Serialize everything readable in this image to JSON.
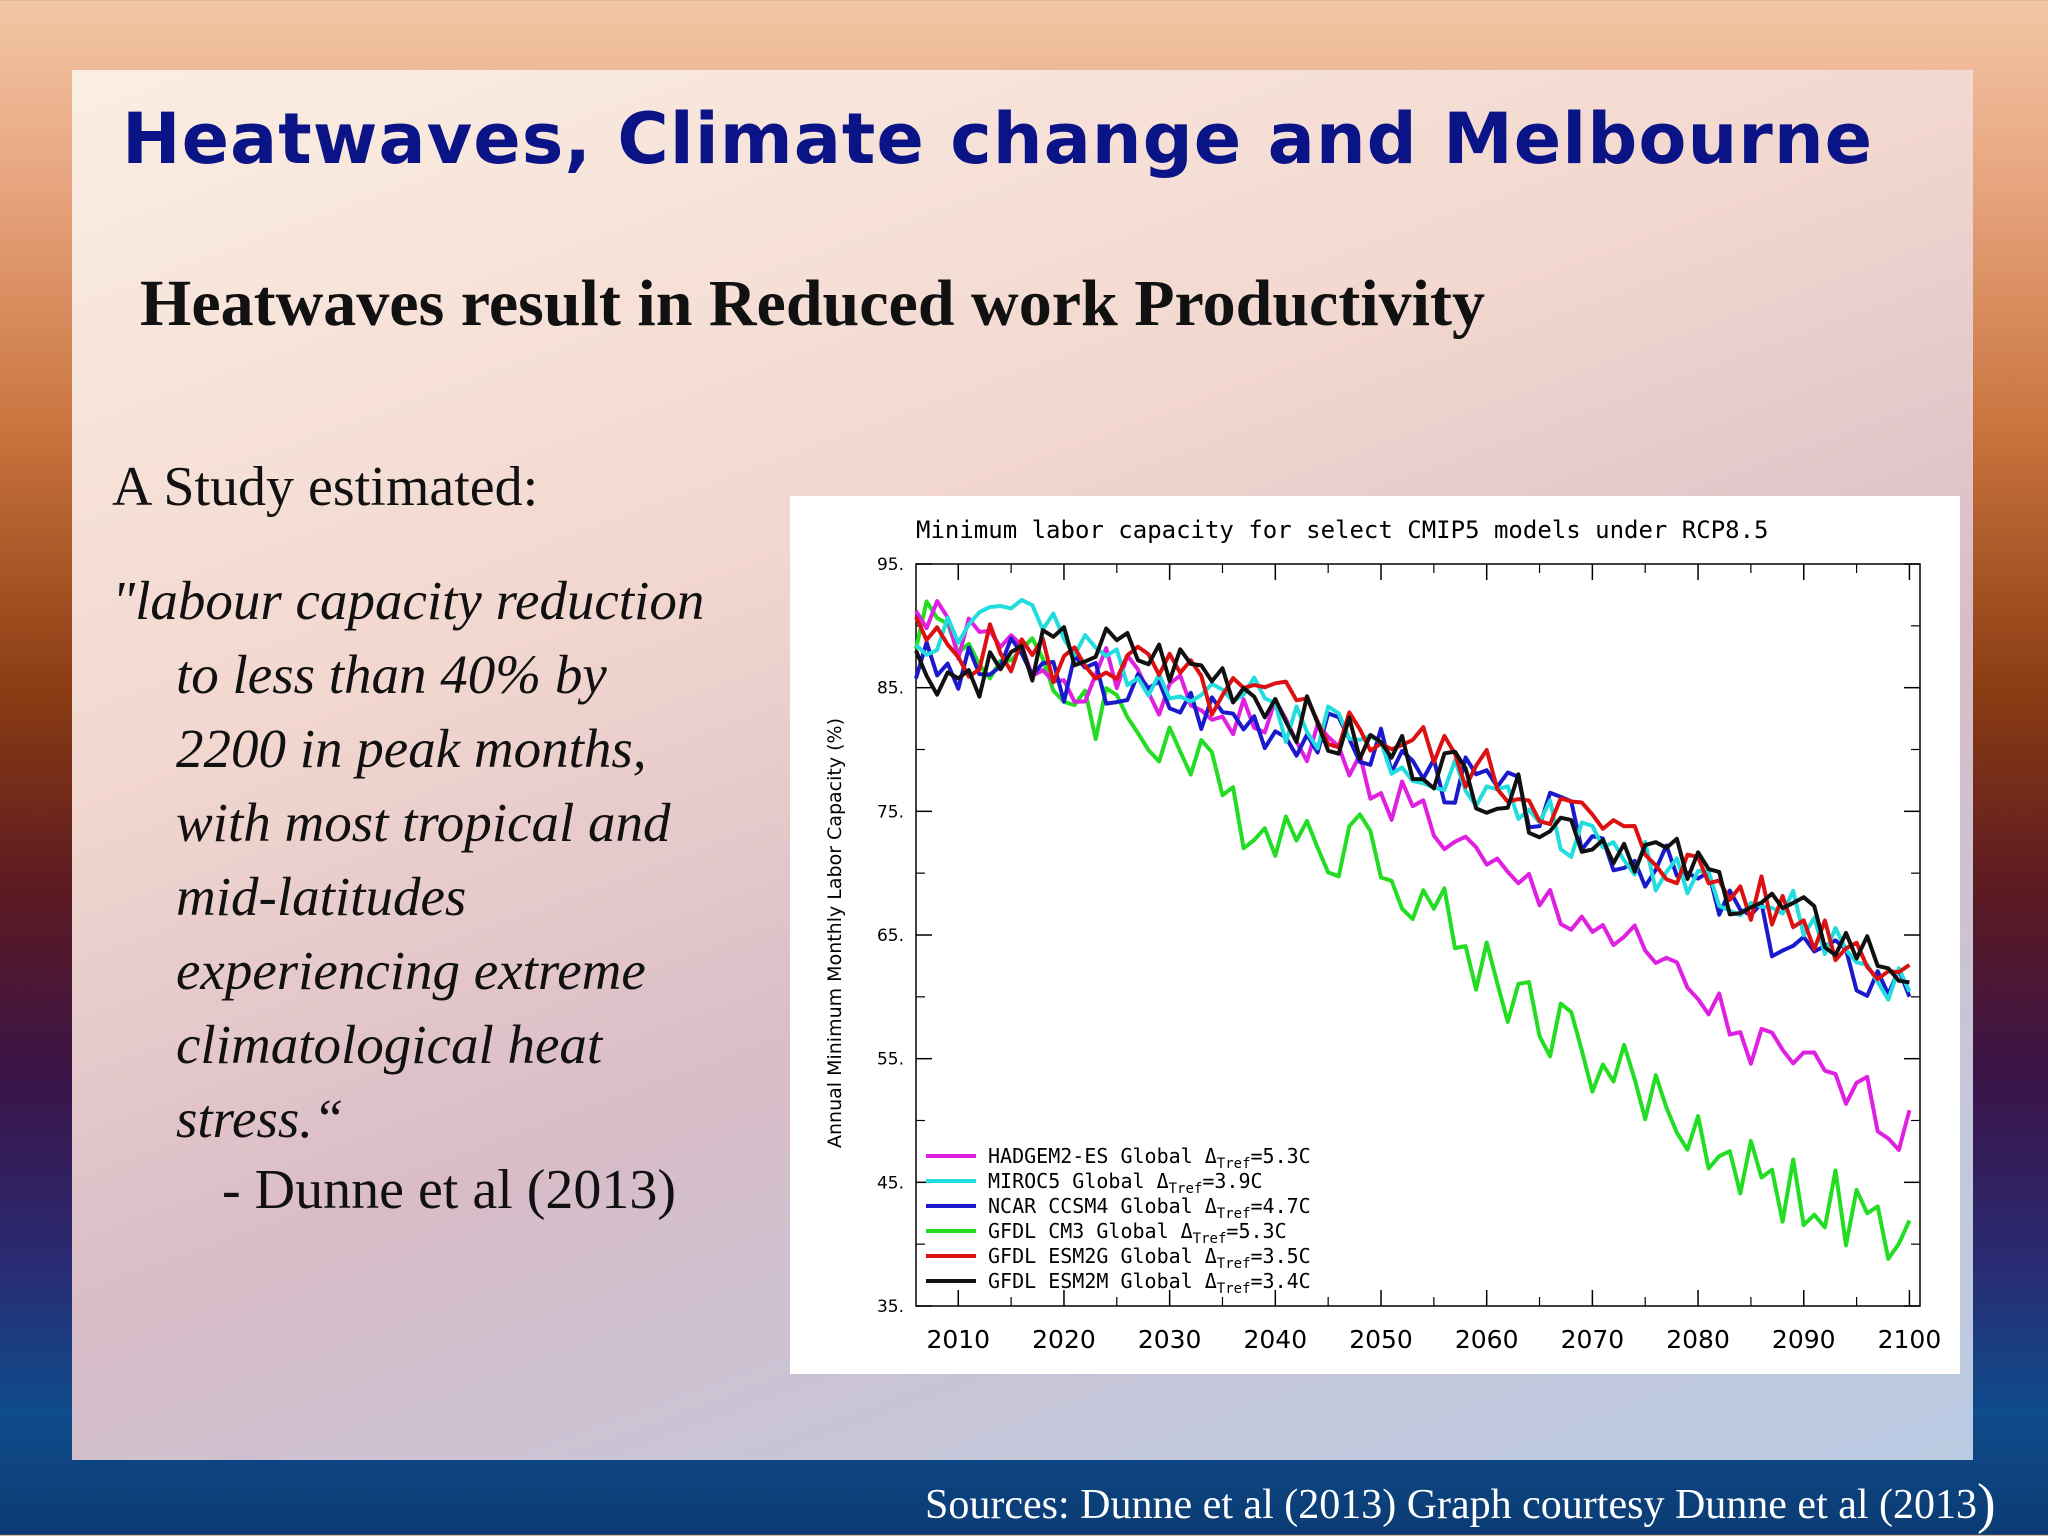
{
  "slide": {
    "title": "Heatwaves, Climate change and Melbourne",
    "subtitle": "Heatwaves result in Reduced work Productivity",
    "study_intro": "A Study estimated:",
    "quote_lines": [
      "\"labour capacity reduction",
      "to less than 40% by",
      "2200 in peak months,",
      "with most tropical and",
      "mid-latitudes",
      "experiencing extreme",
      "climatological heat",
      "stress.“"
    ],
    "attribution": "- Dunne et al (2013)",
    "sources": "Sources: Dunne et al (2013) Graph courtesy Dunne et al (2013",
    "sources_close": ")"
  },
  "chart_data": {
    "type": "line",
    "title": "Minimum labor capacity for select CMIP5 models under RCP8.5",
    "xlabel": "",
    "ylabel": "Annual Minimum Monthly Labor Capacity (%)",
    "xlim": [
      2006,
      2101
    ],
    "ylim": [
      35,
      95
    ],
    "x_ticks": [
      2010,
      2020,
      2030,
      2040,
      2050,
      2060,
      2070,
      2080,
      2090,
      2100
    ],
    "y_ticks": [
      35,
      45,
      55,
      65,
      75,
      85,
      95
    ],
    "y_tick_labels": [
      "35.",
      "45.",
      "55.",
      "65.",
      "75.",
      "85.",
      "95."
    ],
    "legend_position": "bottom-left",
    "x_step": 5,
    "series": [
      {
        "label_parts": [
          "HADGEM2-ES Global Δ",
          "Tref",
          "=5.3C"
        ],
        "color": "#e020e0",
        "x": [
          2006,
          2010,
          2015,
          2020,
          2025,
          2030,
          2035,
          2040,
          2045,
          2050,
          2055,
          2060,
          2065,
          2070,
          2075,
          2080,
          2085,
          2090,
          2095,
          2100
        ],
        "values": [
          91,
          89,
          88,
          86,
          86,
          84,
          83,
          82,
          80,
          77,
          74,
          70,
          68,
          66,
          63,
          60,
          56,
          54,
          52,
          49
        ]
      },
      {
        "label_parts": [
          "MIROC5 Global Δ",
          "Tref",
          "=3.9C"
        ],
        "color": "#22dddd",
        "x": [
          2006,
          2010,
          2015,
          2020,
          2025,
          2030,
          2035,
          2040,
          2045,
          2050,
          2055,
          2060,
          2065,
          2070,
          2075,
          2080,
          2085,
          2090,
          2095,
          2100
        ],
        "values": [
          89,
          90,
          92,
          88,
          87,
          86,
          85,
          83,
          82,
          80,
          79,
          76,
          75,
          72,
          71,
          70,
          68,
          66,
          63,
          60
        ]
      },
      {
        "label_parts": [
          "NCAR CCSM4 Global Δ",
          "Tref",
          "=4.7C"
        ],
        "color": "#1a1acc",
        "x": [
          2006,
          2010,
          2015,
          2020,
          2025,
          2030,
          2035,
          2040,
          2045,
          2050,
          2055,
          2060,
          2065,
          2070,
          2075,
          2080,
          2085,
          2090,
          2095,
          2100
        ],
        "values": [
          87,
          86,
          87,
          86,
          85,
          84,
          83,
          82,
          81,
          80,
          78,
          77,
          75,
          73,
          71,
          69,
          66,
          64,
          62,
          61
        ]
      },
      {
        "label_parts": [
          "GFDL CM3 Global Δ",
          "Tref",
          "=5.3C"
        ],
        "color": "#22dd22",
        "x": [
          2006,
          2010,
          2015,
          2020,
          2025,
          2030,
          2035,
          2040,
          2045,
          2050,
          2055,
          2060,
          2065,
          2070,
          2075,
          2080,
          2085,
          2090,
          2095,
          2100
        ],
        "values": [
          91,
          89,
          87,
          85,
          83,
          81,
          76,
          74,
          73,
          72,
          67,
          62,
          59,
          55,
          52,
          49,
          46,
          44,
          42,
          39
        ]
      },
      {
        "label_parts": [
          "GFDL ESM2G Global Δ",
          "Tref",
          "=3.5C"
        ],
        "color": "#dd1111",
        "x": [
          2006,
          2010,
          2015,
          2020,
          2025,
          2030,
          2035,
          2040,
          2045,
          2050,
          2055,
          2060,
          2065,
          2070,
          2075,
          2080,
          2085,
          2090,
          2095,
          2100
        ],
        "values": [
          89,
          88,
          88,
          87,
          87,
          86,
          84,
          84,
          82,
          81,
          80,
          78,
          76,
          74,
          72,
          70,
          68,
          66,
          64,
          62
        ]
      },
      {
        "label_parts": [
          "GFDL ESM2M Global Δ",
          "Tref",
          "=3.4C"
        ],
        "color": "#111111",
        "x": [
          2006,
          2010,
          2015,
          2020,
          2025,
          2030,
          2035,
          2040,
          2045,
          2050,
          2055,
          2060,
          2065,
          2070,
          2075,
          2080,
          2085,
          2090,
          2095,
          2100
        ],
        "values": [
          87,
          86,
          87,
          88,
          88,
          87,
          86,
          84,
          81,
          80,
          79,
          77,
          75,
          73,
          72,
          70,
          68,
          66,
          64,
          62
        ]
      }
    ]
  }
}
